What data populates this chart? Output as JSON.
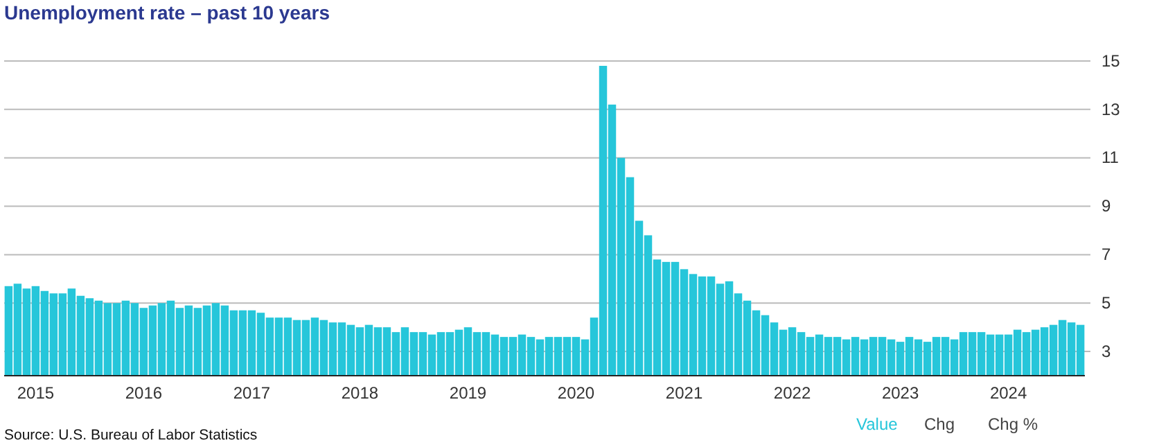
{
  "chart_data": {
    "type": "bar",
    "title": "Unemployment rate – past 10 years",
    "categories": [
      null,
      null,
      null,
      "2015",
      null,
      null,
      null,
      null,
      null,
      null,
      null,
      null,
      null,
      null,
      null,
      "2016",
      null,
      null,
      null,
      null,
      null,
      null,
      null,
      null,
      null,
      null,
      null,
      "2017",
      null,
      null,
      null,
      null,
      null,
      null,
      null,
      null,
      null,
      null,
      null,
      "2018",
      null,
      null,
      null,
      null,
      null,
      null,
      null,
      null,
      null,
      null,
      null,
      "2019",
      null,
      null,
      null,
      null,
      null,
      null,
      null,
      null,
      null,
      null,
      null,
      "2020",
      null,
      null,
      null,
      null,
      null,
      null,
      null,
      null,
      null,
      null,
      null,
      "2021",
      null,
      null,
      null,
      null,
      null,
      null,
      null,
      null,
      null,
      null,
      null,
      "2022",
      null,
      null,
      null,
      null,
      null,
      null,
      null,
      null,
      null,
      null,
      null,
      "2023",
      null,
      null,
      null,
      null,
      null,
      null,
      null,
      null,
      null,
      null,
      null,
      "2024",
      null,
      null,
      null,
      null,
      null,
      null,
      null,
      null
    ],
    "series": [
      {
        "name": "Value",
        "color": "#26c6da",
        "values": [
          5.7,
          5.8,
          5.6,
          5.7,
          5.5,
          5.4,
          5.4,
          5.6,
          5.3,
          5.2,
          5.1,
          5.0,
          5.0,
          5.1,
          5.0,
          4.8,
          4.9,
          5.0,
          5.1,
          4.8,
          4.9,
          4.8,
          4.9,
          5.0,
          4.9,
          4.7,
          4.7,
          4.7,
          4.6,
          4.4,
          4.4,
          4.4,
          4.3,
          4.3,
          4.4,
          4.3,
          4.2,
          4.2,
          4.1,
          4.0,
          4.1,
          4.0,
          4.0,
          3.8,
          4.0,
          3.8,
          3.8,
          3.7,
          3.8,
          3.8,
          3.9,
          4.0,
          3.8,
          3.8,
          3.7,
          3.6,
          3.6,
          3.7,
          3.6,
          3.5,
          3.6,
          3.6,
          3.6,
          3.6,
          3.5,
          4.4,
          14.8,
          13.2,
          11.0,
          10.2,
          8.4,
          7.8,
          6.8,
          6.7,
          6.7,
          6.4,
          6.2,
          6.1,
          6.1,
          5.8,
          5.9,
          5.4,
          5.1,
          4.7,
          4.5,
          4.2,
          3.9,
          4.0,
          3.8,
          3.6,
          3.7,
          3.6,
          3.6,
          3.5,
          3.6,
          3.5,
          3.6,
          3.6,
          3.5,
          3.4,
          3.6,
          3.5,
          3.4,
          3.6,
          3.6,
          3.5,
          3.8,
          3.8,
          3.8,
          3.7,
          3.7,
          3.7,
          3.9,
          3.8,
          3.9,
          4.0,
          4.1,
          4.3,
          4.2,
          4.1
        ]
      }
    ],
    "ylim": [
      2,
      15
    ],
    "yticks": [
      3,
      5,
      7,
      9,
      11,
      13,
      15
    ],
    "grid": "y",
    "legend": "bottom right",
    "annotations": [
      "Chg",
      "Chg %",
      "Source: U.S. Bureau of Labor Statistics"
    ]
  }
}
